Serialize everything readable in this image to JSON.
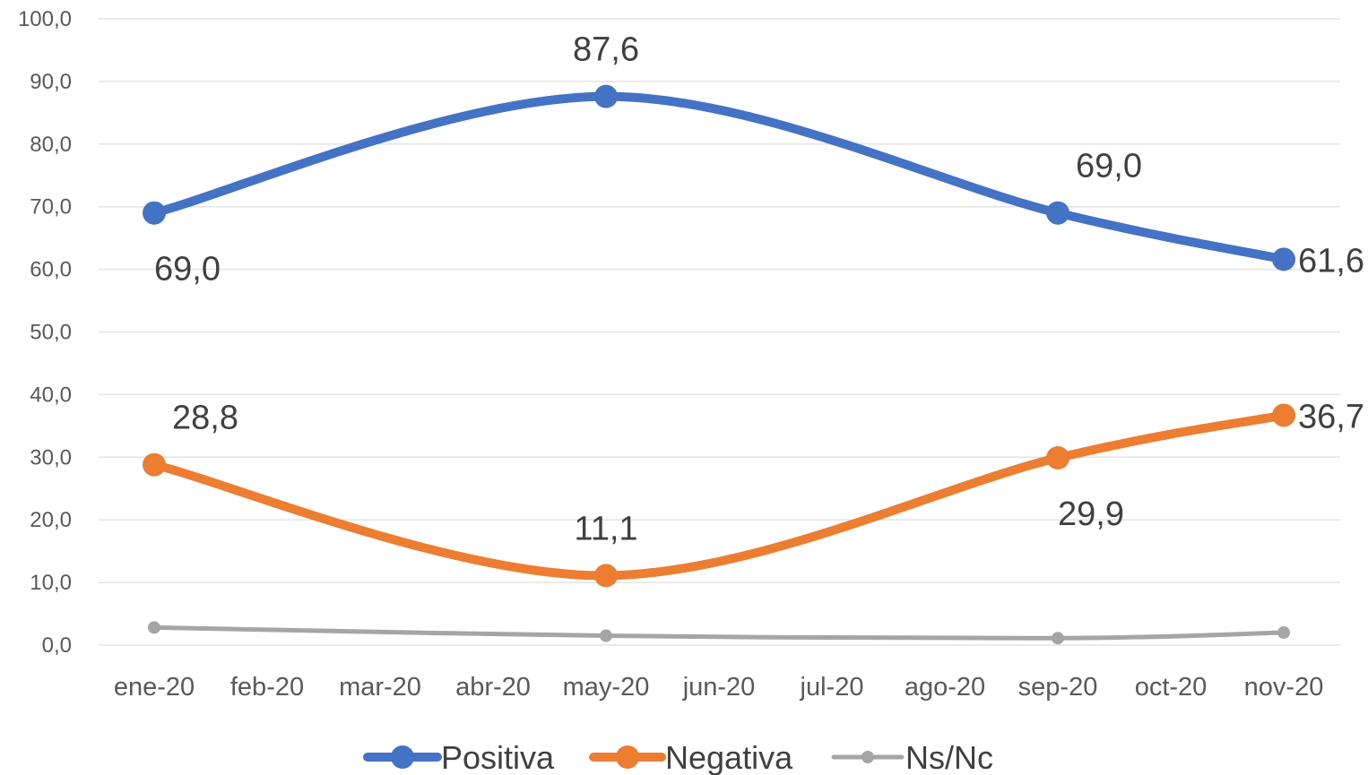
{
  "chart_data": {
    "type": "line",
    "title": "",
    "xlabel": "",
    "ylabel": "",
    "categories": [
      "ene-20",
      "feb-20",
      "mar-20",
      "abr-20",
      "may-20",
      "jun-20",
      "jul-20",
      "ago-20",
      "sep-20",
      "oct-20",
      "nov-20"
    ],
    "ylim": [
      0,
      100
    ],
    "yticks": [
      "0,0",
      "10,0",
      "20,0",
      "30,0",
      "40,0",
      "50,0",
      "60,0",
      "70,0",
      "80,0",
      "90,0",
      "100,0"
    ],
    "grid": true,
    "smooth": true,
    "legend_position": "bottom",
    "series": [
      {
        "name": "Positiva",
        "color": "#4472c4",
        "points": [
          {
            "x": "ene-20",
            "y": 69.0,
            "label": "69,0",
            "label_pos": "below-right"
          },
          {
            "x": "may-20",
            "y": 87.6,
            "label": "87,6",
            "label_pos": "above"
          },
          {
            "x": "sep-20",
            "y": 69.0,
            "label": "69,0",
            "label_pos": "above-right"
          },
          {
            "x": "nov-20",
            "y": 61.6,
            "label": "61,6",
            "label_pos": "right"
          }
        ]
      },
      {
        "name": "Negativa",
        "color": "#ed7d31",
        "points": [
          {
            "x": "ene-20",
            "y": 28.8,
            "label": "28,8",
            "label_pos": "above-right"
          },
          {
            "x": "may-20",
            "y": 11.1,
            "label": "11,1",
            "label_pos": "above"
          },
          {
            "x": "sep-20",
            "y": 29.9,
            "label": "29,9",
            "label_pos": "below-right"
          },
          {
            "x": "nov-20",
            "y": 36.7,
            "label": "36,7",
            "label_pos": "right"
          }
        ]
      },
      {
        "name": "Ns/Nc",
        "color": "#a5a5a5",
        "points": [
          {
            "x": "ene-20",
            "y": 2.8,
            "label": ""
          },
          {
            "x": "may-20",
            "y": 1.5,
            "label": ""
          },
          {
            "x": "sep-20",
            "y": 1.1,
            "label": ""
          },
          {
            "x": "nov-20",
            "y": 2.0,
            "label": ""
          }
        ]
      }
    ]
  }
}
